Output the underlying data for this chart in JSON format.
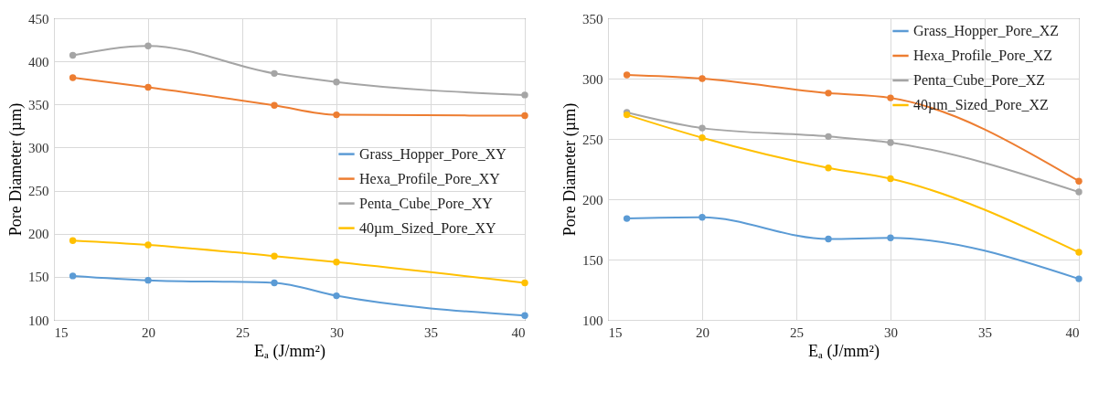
{
  "chart_data": [
    {
      "type": "line",
      "xlabel": "Eₐ (J/mm²)",
      "ylabel": "Pore Diameter (µm)",
      "x": [
        16,
        20,
        26.7,
        30,
        40
      ],
      "xlim": [
        15,
        40
      ],
      "xticks": [
        15,
        20,
        25,
        30,
        35,
        40
      ],
      "ylim": [
        100,
        450
      ],
      "yticks": [
        100,
        150,
        200,
        250,
        300,
        350,
        400,
        450
      ],
      "grid": true,
      "legend": "right",
      "marker": "circle",
      "line_style": "solid",
      "series": [
        {
          "name": "Grass_Hopper_Pore_XY",
          "color": "#5b9bd5",
          "values": [
            151,
            146,
            143,
            128,
            105
          ]
        },
        {
          "name": "Hexa_Profile_Pore_XY",
          "color": "#ed7d31",
          "values": [
            381,
            370,
            349,
            338,
            337
          ]
        },
        {
          "name": "Penta_Cube_Pore_XY",
          "color": "#a5a5a5",
          "values": [
            407,
            418,
            386,
            376,
            361
          ]
        },
        {
          "name": "40µm_Sized_Pore_XY",
          "color": "#ffc000",
          "values": [
            192,
            187,
            174,
            167,
            143
          ]
        }
      ]
    },
    {
      "type": "line",
      "xlabel": "Eₐ (J/mm²)",
      "ylabel": "Pore Diameter (µm)",
      "x": [
        16,
        20,
        26.7,
        30,
        40
      ],
      "xlim": [
        15,
        40
      ],
      "xticks": [
        15,
        20,
        25,
        30,
        35,
        40
      ],
      "ylim": [
        100,
        350
      ],
      "yticks": [
        100,
        150,
        200,
        250,
        300,
        350
      ],
      "grid": true,
      "legend": "top right",
      "marker": "circle",
      "line_style": "solid",
      "series": [
        {
          "name": "Grass_Hopper_Pore_XZ",
          "color": "#5b9bd5",
          "values": [
            184,
            185,
            167,
            168,
            134
          ]
        },
        {
          "name": "Hexa_Profile_Pore_XZ",
          "color": "#ed7d31",
          "values": [
            303,
            300,
            288,
            284,
            215
          ]
        },
        {
          "name": "Penta_Cube_Pore_XZ",
          "color": "#a5a5a5",
          "values": [
            272,
            259,
            252,
            247,
            206
          ]
        },
        {
          "name": "40µm_Sized_Pore_XZ",
          "color": "#ffc000",
          "values": [
            270,
            251,
            226,
            217,
            156
          ]
        }
      ]
    }
  ]
}
